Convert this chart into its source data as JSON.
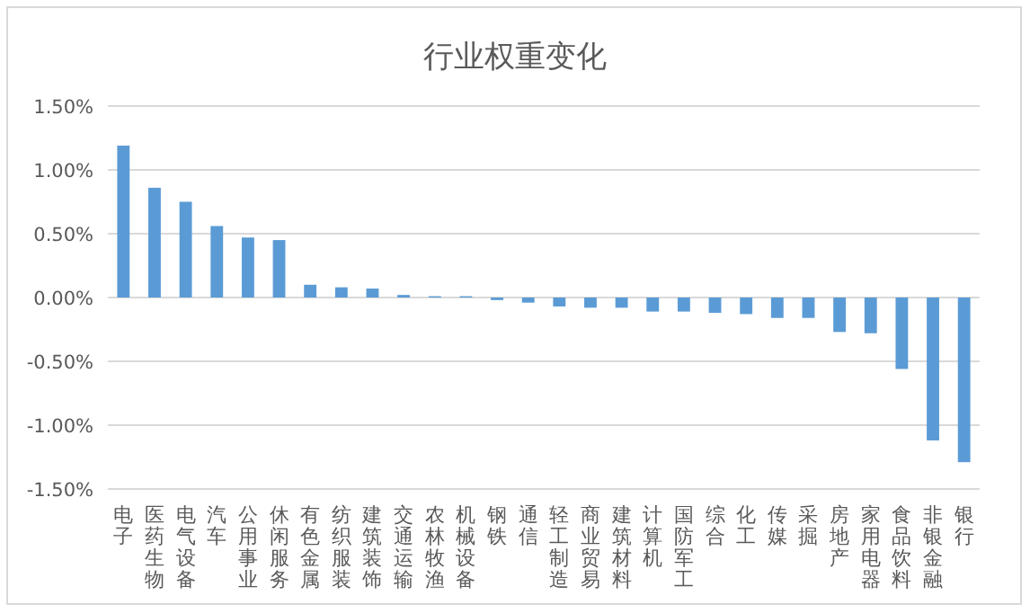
{
  "chart_data": {
    "type": "bar",
    "title": "行业权重变化",
    "categories": [
      "电子",
      "医药生物",
      "电气设备",
      "汽车",
      "公用事业",
      "休闲服务",
      "有色金属",
      "纺织服装",
      "建筑装饰",
      "交通运输",
      "农林牧渔",
      "机械设备",
      "钢铁",
      "通信",
      "轻工制造",
      "商业贸易",
      "建筑材料",
      "计算机",
      "国防军工",
      "综合",
      "化工",
      "传媒",
      "采掘",
      "房地产",
      "家用电器",
      "食品饮料",
      "非银金融",
      "银行"
    ],
    "values": [
      1.19,
      0.86,
      0.75,
      0.56,
      0.47,
      0.45,
      0.1,
      0.08,
      0.07,
      0.02,
      0.01,
      0.01,
      -0.02,
      -0.04,
      -0.07,
      -0.08,
      -0.08,
      -0.11,
      -0.11,
      -0.12,
      -0.13,
      -0.16,
      -0.16,
      -0.27,
      -0.28,
      -0.56,
      -1.12,
      -1.29
    ],
    "color": "#5b9bd5",
    "ylim": [
      -1.5,
      1.5
    ],
    "yticks": [
      {
        "value": -1.5,
        "label": "-1.50%"
      },
      {
        "value": -1.0,
        "label": "-1.00%"
      },
      {
        "value": -0.5,
        "label": "-0.50%"
      },
      {
        "value": 0.0,
        "label": "0.00%"
      },
      {
        "value": 0.5,
        "label": "0.50%"
      },
      {
        "value": 1.0,
        "label": "1.00%"
      },
      {
        "value": 1.5,
        "label": "1.50%"
      }
    ],
    "grid": "y"
  }
}
